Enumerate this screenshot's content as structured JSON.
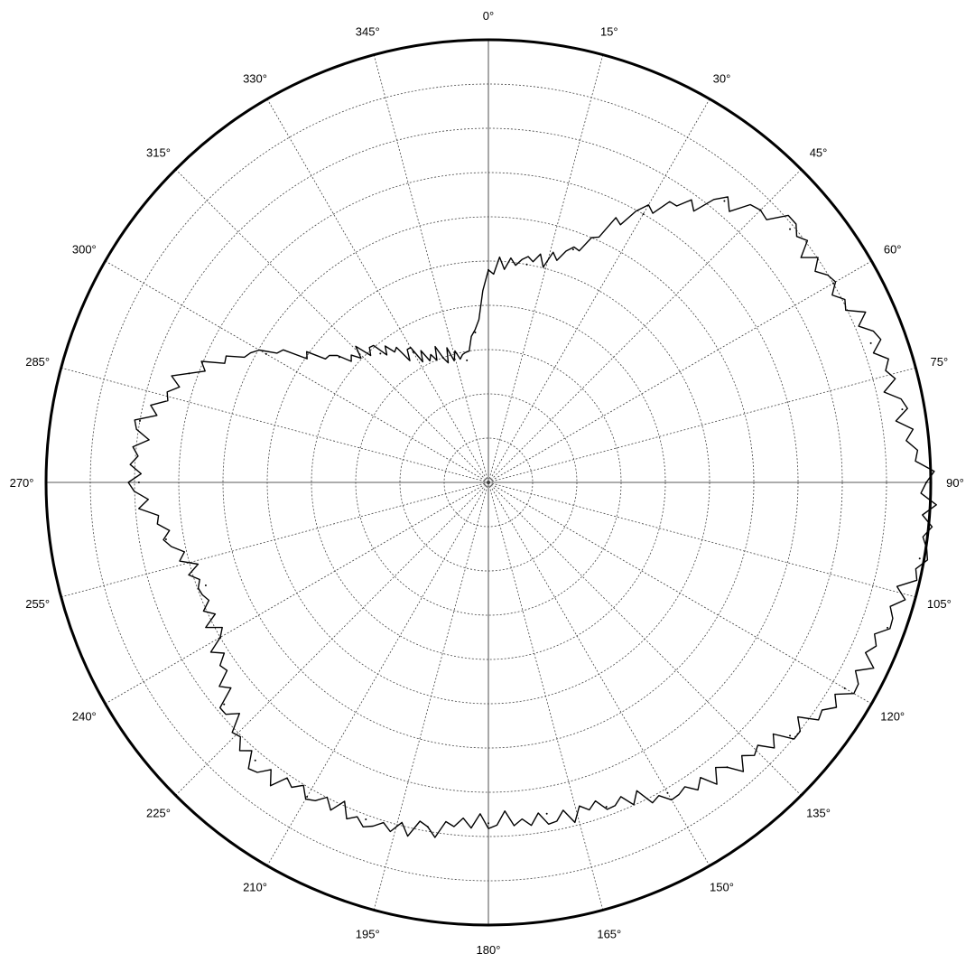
{
  "chart_data": {
    "type": "polar-line",
    "angle_direction": "clockwise",
    "zero_angle": "top",
    "radial_range": [
      0,
      1
    ],
    "rings": 10,
    "spokes_every_deg": 15,
    "grid": true,
    "angle_tick_labels": [
      "0°",
      "15°",
      "30°",
      "45°",
      "60°",
      "75°",
      "90°",
      "105°",
      "120°",
      "135°",
      "150°",
      "165°",
      "180°",
      "195°",
      "210°",
      "225°",
      "240°",
      "255°",
      "270°",
      "285°",
      "300°",
      "315°",
      "330°",
      "345°"
    ],
    "series": [
      {
        "theta": [
          0,
          10,
          20,
          30,
          40,
          45,
          50,
          60,
          70,
          80,
          90,
          100,
          110,
          120,
          130,
          140,
          150,
          160,
          170,
          180,
          190,
          200,
          210,
          220,
          230,
          240,
          250,
          260,
          270,
          280,
          290,
          300,
          310,
          320,
          330,
          340,
          350,
          355
        ],
        "r": [
          0.48,
          0.5,
          0.56,
          0.7,
          0.83,
          0.87,
          0.89,
          0.9,
          0.92,
          0.95,
          0.99,
          0.99,
          0.96,
          0.93,
          0.89,
          0.84,
          0.81,
          0.78,
          0.76,
          0.77,
          0.79,
          0.81,
          0.82,
          0.82,
          0.78,
          0.7,
          0.68,
          0.74,
          0.79,
          0.8,
          0.72,
          0.58,
          0.44,
          0.38,
          0.34,
          0.3,
          0.28,
          0.34
        ]
      }
    ]
  }
}
